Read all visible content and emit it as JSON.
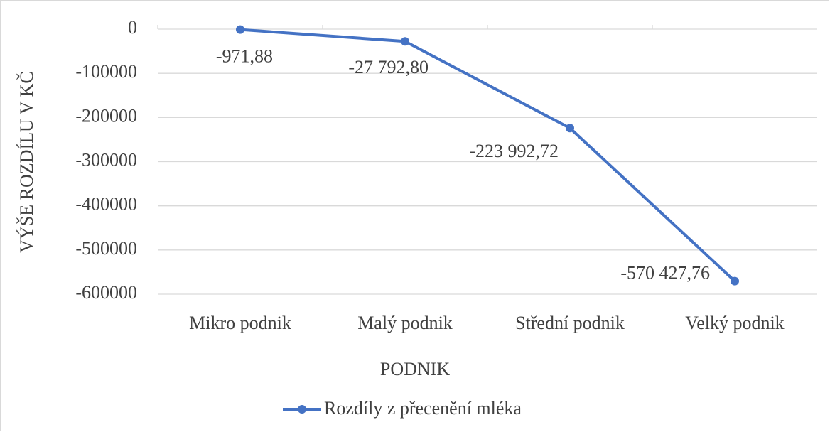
{
  "chart_data": {
    "type": "line",
    "x_label": "PODNIK",
    "y_label": "VÝŠE ROZDÍLU V KČ",
    "categories": [
      "Mikro podnik",
      "Malý podnik",
      "Střední podnik",
      "Velký podnik"
    ],
    "series": [
      {
        "name": "Rozdíly z přecenění mléka",
        "color": "#4472c4",
        "values": [
          -971.88,
          -27792.8,
          -223992.72,
          -570427.76
        ],
        "value_labels": [
          "-971,88",
          "-27 792,80",
          "-223 992,72",
          "-570 427,76"
        ]
      }
    ],
    "ylim": [
      -600000,
      0
    ],
    "yticks": [
      0,
      -100000,
      -200000,
      -300000,
      -400000,
      -500000,
      -600000
    ],
    "grid": true,
    "legend": "bottom"
  }
}
